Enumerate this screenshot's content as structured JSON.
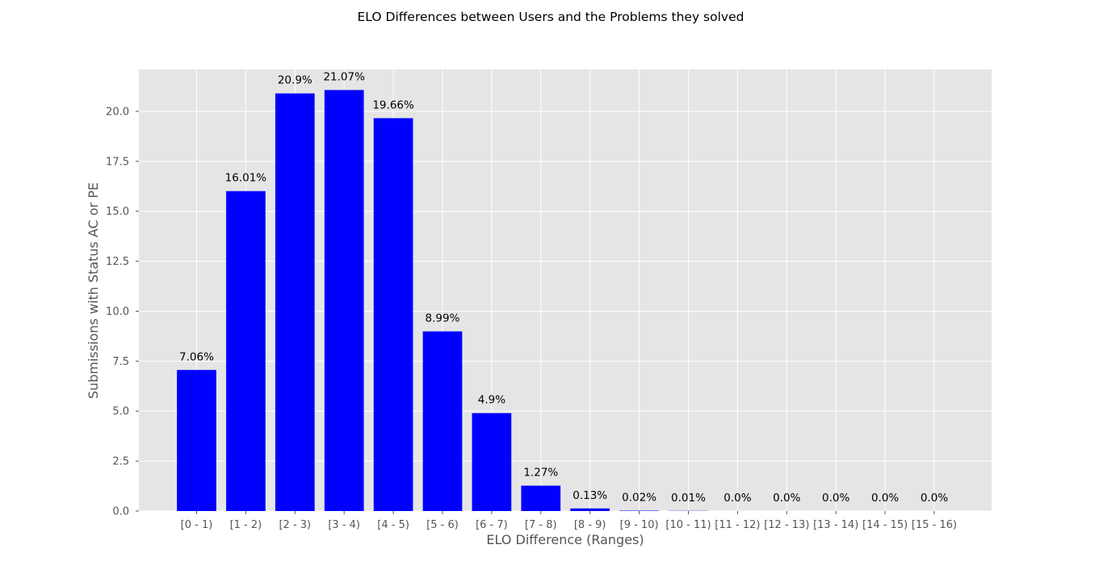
{
  "chart_data": {
    "type": "bar",
    "title": "ELO Differences between Users and the Problems they solved",
    "xlabel": "ELO Difference (Ranges)",
    "ylabel": "Submissions with Status AC or PE",
    "categories": [
      "[0 - 1)",
      "[1 - 2)",
      "[2 - 3)",
      "[3 - 4)",
      "[4 - 5)",
      "[5 - 6)",
      "[6 - 7)",
      "[7 - 8)",
      "[8 - 9)",
      "[9 - 10)",
      "[10 - 11)",
      "[11 - 12)",
      "[12 - 13)",
      "[13 - 14)",
      "[14 - 15)",
      "[15 - 16)"
    ],
    "values": [
      7.06,
      16.01,
      20.9,
      21.07,
      19.66,
      8.99,
      4.9,
      1.27,
      0.13,
      0.02,
      0.01,
      0.0,
      0.0,
      0.0,
      0.0,
      0.0
    ],
    "value_labels": [
      "7.06%",
      "16.01%",
      "20.9%",
      "21.07%",
      "19.66%",
      "8.99%",
      "4.9%",
      "1.27%",
      "0.13%",
      "0.02%",
      "0.01%",
      "0.0%",
      "0.0%",
      "0.0%",
      "0.0%",
      "0.0%"
    ],
    "ylim": [
      0,
      22.1
    ],
    "yticks": [
      0.0,
      2.5,
      5.0,
      7.5,
      10.0,
      12.5,
      15.0,
      17.5,
      20.0
    ],
    "ytick_labels": [
      "0.0",
      "2.5",
      "5.0",
      "7.5",
      "10.0",
      "12.5",
      "15.0",
      "17.5",
      "20.0"
    ],
    "grid": true,
    "legend": "none",
    "colors": {
      "bar": "#0000ff",
      "plot_background": "#e5e5e5",
      "grid": "#ffffff"
    }
  }
}
